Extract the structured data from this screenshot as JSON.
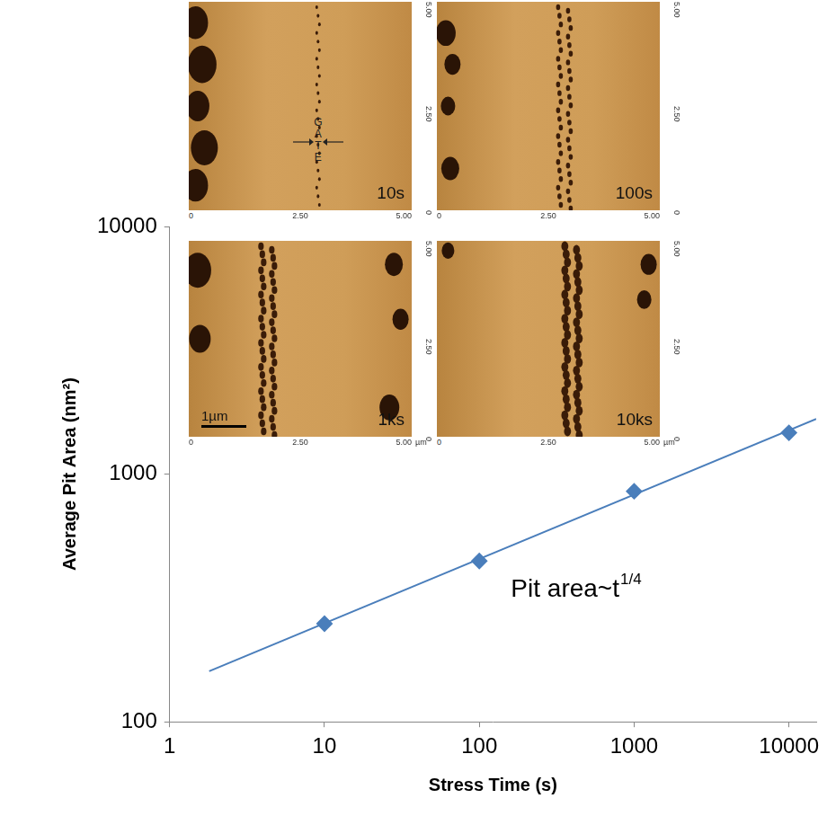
{
  "chart_data": {
    "type": "scatter",
    "x_label": "Stress Time (s)",
    "y_label": "Average Pit Area (nm²)",
    "log": true,
    "grid": false,
    "xlim": [
      1,
      15000
    ],
    "ylim": [
      100,
      10000
    ],
    "xticks": [
      1,
      10,
      100,
      1000,
      10000
    ],
    "yticks": [
      100,
      1000,
      10000
    ],
    "series": [
      {
        "x": [
          10,
          100,
          1000,
          10000
        ],
        "values": [
          249,
          446,
          853,
          1469
        ],
        "color": "#4a7ebb",
        "marker": "diamond",
        "line_style": "none"
      },
      {
        "x": [
          1.8,
          15000
        ],
        "values": [
          160,
          1670
        ],
        "color": "#4a7ebb",
        "marker": "none",
        "line_style": "solid"
      }
    ],
    "annotations": [
      {
        "text": "Pit area~t",
        "superscript": "1/4",
        "x": 160,
        "y": 340
      }
    ],
    "insets": [
      {
        "label": "10s",
        "gate_text": "GATE"
      },
      {
        "label": "100s"
      },
      {
        "label": "1ks",
        "scale_bar": {
          "label": "1µm",
          "length": 1
        },
        "unit": "µm"
      },
      {
        "label": "10ks",
        "unit": "µm"
      }
    ],
    "inset_ticks": [
      {
        "value": 0,
        "label": "0"
      },
      {
        "value": 2.5,
        "label": "2.50"
      },
      {
        "value": 5,
        "label": "5.00"
      }
    ]
  }
}
